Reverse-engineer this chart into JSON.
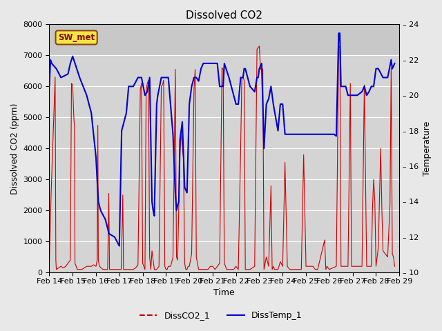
{
  "title": "Dissolved CO2",
  "xlabel": "Time",
  "ylabel_left": "Dissolved CO2 (ppm)",
  "ylabel_right": "Temperature",
  "left_ylim": [
    0,
    8000
  ],
  "right_ylim": [
    10,
    24
  ],
  "left_yticks": [
    0,
    1000,
    2000,
    3000,
    4000,
    5000,
    6000,
    7000,
    8000
  ],
  "right_yticks": [
    10,
    12,
    14,
    16,
    18,
    20,
    22,
    24
  ],
  "annotation_text": "SW_met",
  "annotation_bbox_fc": "#f5e642",
  "annotation_bbox_ec": "#8B4513",
  "co2_color": "#cc0000",
  "temp_color": "#0000cc",
  "legend_co2": "DissCO2_1",
  "legend_temp": "DissTemp_1",
  "background_color": "#e8e8e8",
  "plot_bg_lower": "#d4d4d4",
  "plot_bg_upper": "#c8c8c8",
  "grid_color": "#ffffff",
  "title_fontsize": 11,
  "axis_label_fontsize": 9,
  "tick_fontsize": 8,
  "days": [
    14,
    15,
    16,
    17,
    18,
    19,
    20,
    21,
    22,
    23,
    24,
    25,
    26,
    27,
    28,
    29
  ],
  "co2_data": [
    [
      14.0,
      300
    ],
    [
      14.08,
      2600
    ],
    [
      14.25,
      6300
    ],
    [
      14.28,
      400
    ],
    [
      14.3,
      100
    ],
    [
      14.4,
      150
    ],
    [
      14.5,
      200
    ],
    [
      14.6,
      150
    ],
    [
      14.7,
      200
    ],
    [
      14.8,
      300
    ],
    [
      14.9,
      400
    ],
    [
      14.95,
      6100
    ],
    [
      15.0,
      6050
    ],
    [
      15.05,
      5000
    ],
    [
      15.08,
      4700
    ],
    [
      15.1,
      300
    ],
    [
      15.15,
      200
    ],
    [
      15.2,
      100
    ],
    [
      15.3,
      100
    ],
    [
      15.4,
      100
    ],
    [
      15.5,
      150
    ],
    [
      15.6,
      200
    ],
    [
      15.7,
      200
    ],
    [
      15.8,
      200
    ],
    [
      15.9,
      250
    ],
    [
      16.0,
      200
    ],
    [
      16.05,
      400
    ],
    [
      16.08,
      4750
    ],
    [
      16.1,
      400
    ],
    [
      16.15,
      200
    ],
    [
      16.3,
      100
    ],
    [
      16.4,
      100
    ],
    [
      16.5,
      100
    ],
    [
      16.55,
      2550
    ],
    [
      16.58,
      100
    ],
    [
      16.7,
      100
    ],
    [
      16.8,
      100
    ],
    [
      16.9,
      100
    ],
    [
      17.0,
      100
    ],
    [
      17.08,
      100
    ],
    [
      17.15,
      2500
    ],
    [
      17.18,
      100
    ],
    [
      17.3,
      100
    ],
    [
      17.4,
      100
    ],
    [
      17.5,
      100
    ],
    [
      17.6,
      100
    ],
    [
      17.7,
      150
    ],
    [
      17.8,
      250
    ],
    [
      17.9,
      5900
    ],
    [
      17.95,
      6100
    ],
    [
      18.0,
      300
    ],
    [
      18.1,
      100
    ],
    [
      18.15,
      5900
    ],
    [
      18.2,
      6100
    ],
    [
      18.25,
      6200
    ],
    [
      18.3,
      500
    ],
    [
      18.35,
      100
    ],
    [
      18.4,
      700
    ],
    [
      18.5,
      100
    ],
    [
      18.6,
      100
    ],
    [
      18.7,
      200
    ],
    [
      18.8,
      6000
    ],
    [
      18.85,
      6050
    ],
    [
      18.9,
      6200
    ],
    [
      18.95,
      200
    ],
    [
      19.0,
      100
    ],
    [
      19.05,
      100
    ],
    [
      19.1,
      200
    ],
    [
      19.2,
      200
    ],
    [
      19.3,
      500
    ],
    [
      19.4,
      6550
    ],
    [
      19.45,
      500
    ],
    [
      19.5,
      400
    ],
    [
      19.6,
      3900
    ],
    [
      19.65,
      4500
    ],
    [
      19.7,
      4000
    ],
    [
      19.75,
      3700
    ],
    [
      19.8,
      300
    ],
    [
      19.85,
      100
    ],
    [
      19.9,
      100
    ],
    [
      19.95,
      200
    ],
    [
      20.0,
      200
    ],
    [
      20.1,
      600
    ],
    [
      20.2,
      5900
    ],
    [
      20.25,
      6550
    ],
    [
      20.3,
      500
    ],
    [
      20.4,
      100
    ],
    [
      20.5,
      100
    ],
    [
      20.6,
      100
    ],
    [
      20.8,
      100
    ],
    [
      20.9,
      200
    ],
    [
      21.0,
      200
    ],
    [
      21.1,
      100
    ],
    [
      21.3,
      300
    ],
    [
      21.4,
      6600
    ],
    [
      21.45,
      6550
    ],
    [
      21.5,
      300
    ],
    [
      21.6,
      100
    ],
    [
      21.7,
      100
    ],
    [
      21.8,
      100
    ],
    [
      21.9,
      100
    ],
    [
      22.0,
      200
    ],
    [
      22.1,
      100
    ],
    [
      22.2,
      4000
    ],
    [
      22.25,
      6250
    ],
    [
      22.3,
      6300
    ],
    [
      22.35,
      6200
    ],
    [
      22.4,
      100
    ],
    [
      22.5,
      100
    ],
    [
      22.6,
      100
    ],
    [
      22.8,
      200
    ],
    [
      22.9,
      7200
    ],
    [
      23.0,
      7300
    ],
    [
      23.05,
      6550
    ],
    [
      23.1,
      6600
    ],
    [
      23.15,
      6550
    ],
    [
      23.2,
      100
    ],
    [
      23.3,
      500
    ],
    [
      23.4,
      200
    ],
    [
      23.5,
      2800
    ],
    [
      23.55,
      100
    ],
    [
      23.6,
      200
    ],
    [
      23.65,
      100
    ],
    [
      23.7,
      100
    ],
    [
      23.8,
      100
    ],
    [
      23.9,
      350
    ],
    [
      24.0,
      200
    ],
    [
      24.1,
      3550
    ],
    [
      24.2,
      200
    ],
    [
      24.3,
      100
    ],
    [
      24.4,
      100
    ],
    [
      24.8,
      100
    ],
    [
      24.9,
      3800
    ],
    [
      25.0,
      200
    ],
    [
      25.1,
      200
    ],
    [
      25.3,
      200
    ],
    [
      25.4,
      100
    ],
    [
      25.5,
      100
    ],
    [
      25.8,
      1050
    ],
    [
      25.85,
      100
    ],
    [
      25.9,
      200
    ],
    [
      26.0,
      100
    ],
    [
      26.3,
      200
    ],
    [
      26.4,
      7250
    ],
    [
      26.45,
      7300
    ],
    [
      26.5,
      200
    ],
    [
      26.6,
      200
    ],
    [
      26.7,
      200
    ],
    [
      26.8,
      200
    ],
    [
      26.9,
      6100
    ],
    [
      26.95,
      200
    ],
    [
      27.0,
      200
    ],
    [
      27.3,
      200
    ],
    [
      27.4,
      200
    ],
    [
      27.5,
      6050
    ],
    [
      27.6,
      200
    ],
    [
      27.7,
      200
    ],
    [
      27.8,
      200
    ],
    [
      27.85,
      2100
    ],
    [
      27.9,
      3000
    ],
    [
      27.95,
      2300
    ],
    [
      28.0,
      200
    ],
    [
      28.1,
      800
    ],
    [
      28.2,
      4000
    ],
    [
      28.25,
      2100
    ],
    [
      28.3,
      700
    ],
    [
      28.4,
      600
    ],
    [
      28.5,
      500
    ],
    [
      28.6,
      2200
    ],
    [
      28.65,
      6600
    ],
    [
      28.7,
      600
    ],
    [
      28.75,
      500
    ],
    [
      28.8,
      200
    ]
  ],
  "temp_data": [
    [
      14.0,
      20.5
    ],
    [
      14.05,
      22.0
    ],
    [
      14.1,
      21.8
    ],
    [
      14.3,
      21.5
    ],
    [
      14.5,
      21.0
    ],
    [
      14.8,
      21.2
    ],
    [
      14.9,
      21.8
    ],
    [
      15.0,
      22.2
    ],
    [
      15.05,
      22.0
    ],
    [
      15.1,
      21.8
    ],
    [
      15.3,
      21.0
    ],
    [
      15.6,
      20.0
    ],
    [
      15.8,
      19.0
    ],
    [
      16.0,
      16.5
    ],
    [
      16.1,
      14.0
    ],
    [
      16.2,
      13.5
    ],
    [
      16.4,
      13.0
    ],
    [
      16.5,
      12.5
    ],
    [
      16.55,
      12.2
    ],
    [
      16.8,
      12.0
    ],
    [
      17.0,
      11.5
    ],
    [
      17.1,
      18.0
    ],
    [
      17.3,
      19.0
    ],
    [
      17.4,
      20.5
    ],
    [
      17.6,
      20.5
    ],
    [
      17.8,
      21.0
    ],
    [
      17.9,
      21.0
    ],
    [
      17.95,
      21.0
    ],
    [
      18.1,
      20.0
    ],
    [
      18.2,
      20.2
    ],
    [
      18.3,
      21.0
    ],
    [
      18.4,
      14.0
    ],
    [
      18.45,
      13.5
    ],
    [
      18.5,
      13.2
    ],
    [
      18.6,
      19.5
    ],
    [
      18.65,
      20.0
    ],
    [
      18.8,
      21.0
    ],
    [
      18.85,
      21.0
    ],
    [
      18.9,
      21.0
    ],
    [
      18.95,
      21.0
    ],
    [
      19.1,
      21.0
    ],
    [
      19.3,
      17.8
    ],
    [
      19.4,
      14.5
    ],
    [
      19.45,
      13.5
    ],
    [
      19.5,
      13.8
    ],
    [
      19.55,
      14.0
    ],
    [
      19.6,
      17.5
    ],
    [
      19.65,
      18.0
    ],
    [
      19.7,
      18.5
    ],
    [
      19.8,
      14.8
    ],
    [
      19.9,
      14.5
    ],
    [
      20.0,
      19.5
    ],
    [
      20.1,
      20.5
    ],
    [
      20.2,
      21.0
    ],
    [
      20.3,
      21.0
    ],
    [
      20.4,
      20.8
    ],
    [
      20.5,
      21.5
    ],
    [
      20.6,
      21.8
    ],
    [
      20.8,
      21.8
    ],
    [
      21.0,
      21.8
    ],
    [
      21.2,
      21.8
    ],
    [
      21.3,
      20.5
    ],
    [
      21.4,
      20.5
    ],
    [
      21.45,
      20.5
    ],
    [
      21.5,
      21.8
    ],
    [
      21.7,
      21.0
    ],
    [
      21.8,
      20.5
    ],
    [
      21.9,
      20.0
    ],
    [
      22.0,
      19.5
    ],
    [
      22.1,
      19.5
    ],
    [
      22.2,
      21.0
    ],
    [
      22.3,
      21.0
    ],
    [
      22.35,
      21.5
    ],
    [
      22.4,
      21.5
    ],
    [
      22.5,
      21.0
    ],
    [
      22.6,
      20.5
    ],
    [
      22.8,
      20.2
    ],
    [
      22.9,
      21.0
    ],
    [
      22.95,
      21.0
    ],
    [
      23.0,
      21.5
    ],
    [
      23.1,
      21.8
    ],
    [
      23.15,
      19.5
    ],
    [
      23.2,
      17.0
    ],
    [
      23.3,
      19.5
    ],
    [
      23.4,
      19.8
    ],
    [
      23.5,
      20.5
    ],
    [
      23.6,
      19.5
    ],
    [
      23.8,
      18.0
    ],
    [
      23.9,
      19.5
    ],
    [
      24.0,
      19.5
    ],
    [
      24.1,
      17.8
    ],
    [
      24.3,
      17.8
    ],
    [
      24.5,
      17.8
    ],
    [
      24.8,
      17.8
    ],
    [
      25.0,
      17.8
    ],
    [
      25.2,
      17.8
    ],
    [
      25.4,
      17.8
    ],
    [
      25.6,
      17.8
    ],
    [
      25.8,
      17.8
    ],
    [
      26.0,
      17.8
    ],
    [
      26.2,
      17.8
    ],
    [
      26.3,
      17.7
    ],
    [
      26.4,
      23.5
    ],
    [
      26.45,
      23.5
    ],
    [
      26.5,
      20.5
    ],
    [
      26.6,
      20.5
    ],
    [
      26.7,
      20.5
    ],
    [
      26.8,
      20.0
    ],
    [
      26.9,
      20.0
    ],
    [
      27.0,
      20.0
    ],
    [
      27.2,
      20.0
    ],
    [
      27.4,
      20.2
    ],
    [
      27.5,
      20.5
    ],
    [
      27.6,
      20.0
    ],
    [
      27.7,
      20.2
    ],
    [
      27.8,
      20.5
    ],
    [
      27.9,
      20.5
    ],
    [
      28.0,
      21.5
    ],
    [
      28.1,
      21.5
    ],
    [
      28.3,
      21.0
    ],
    [
      28.5,
      21.0
    ],
    [
      28.65,
      22.0
    ],
    [
      28.7,
      21.5
    ],
    [
      28.8,
      21.8
    ]
  ]
}
